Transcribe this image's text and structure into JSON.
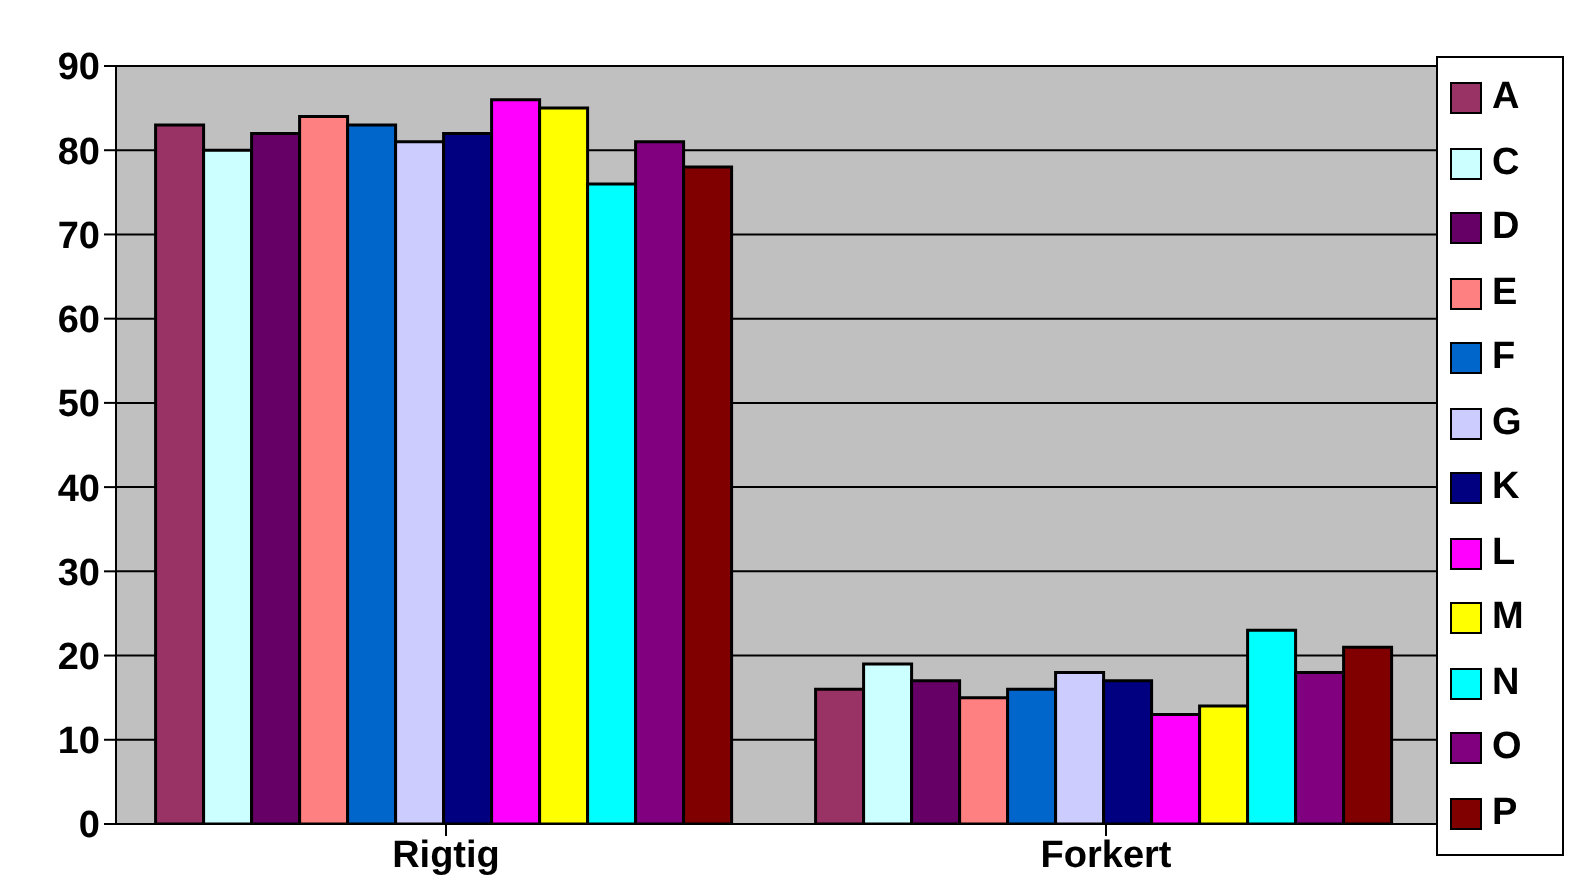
{
  "chart_data": {
    "type": "bar",
    "categories": [
      "Rigtig",
      "Forkert"
    ],
    "series": [
      {
        "name": "A",
        "color": "#993366",
        "values": [
          83,
          16
        ]
      },
      {
        "name": "C",
        "color": "#ccffff",
        "values": [
          80,
          19
        ]
      },
      {
        "name": "D",
        "color": "#660066",
        "values": [
          82,
          17
        ]
      },
      {
        "name": "E",
        "color": "#ff8080",
        "values": [
          84,
          15
        ]
      },
      {
        "name": "F",
        "color": "#0066cc",
        "values": [
          83,
          16
        ]
      },
      {
        "name": "G",
        "color": "#ccccff",
        "values": [
          81,
          18
        ]
      },
      {
        "name": "K",
        "color": "#000080",
        "values": [
          82,
          17
        ]
      },
      {
        "name": "L",
        "color": "#ff00ff",
        "values": [
          86,
          13
        ]
      },
      {
        "name": "M",
        "color": "#ffff00",
        "values": [
          85,
          14
        ]
      },
      {
        "name": "N",
        "color": "#00ffff",
        "values": [
          76,
          23
        ]
      },
      {
        "name": "O",
        "color": "#800080",
        "values": [
          81,
          18
        ]
      },
      {
        "name": "P",
        "color": "#800000",
        "values": [
          78,
          21
        ]
      }
    ],
    "ylim": [
      0,
      90
    ],
    "yticks": [
      0,
      10,
      20,
      30,
      40,
      50,
      60,
      70,
      80,
      90
    ],
    "grid": "y",
    "legend": "right"
  }
}
